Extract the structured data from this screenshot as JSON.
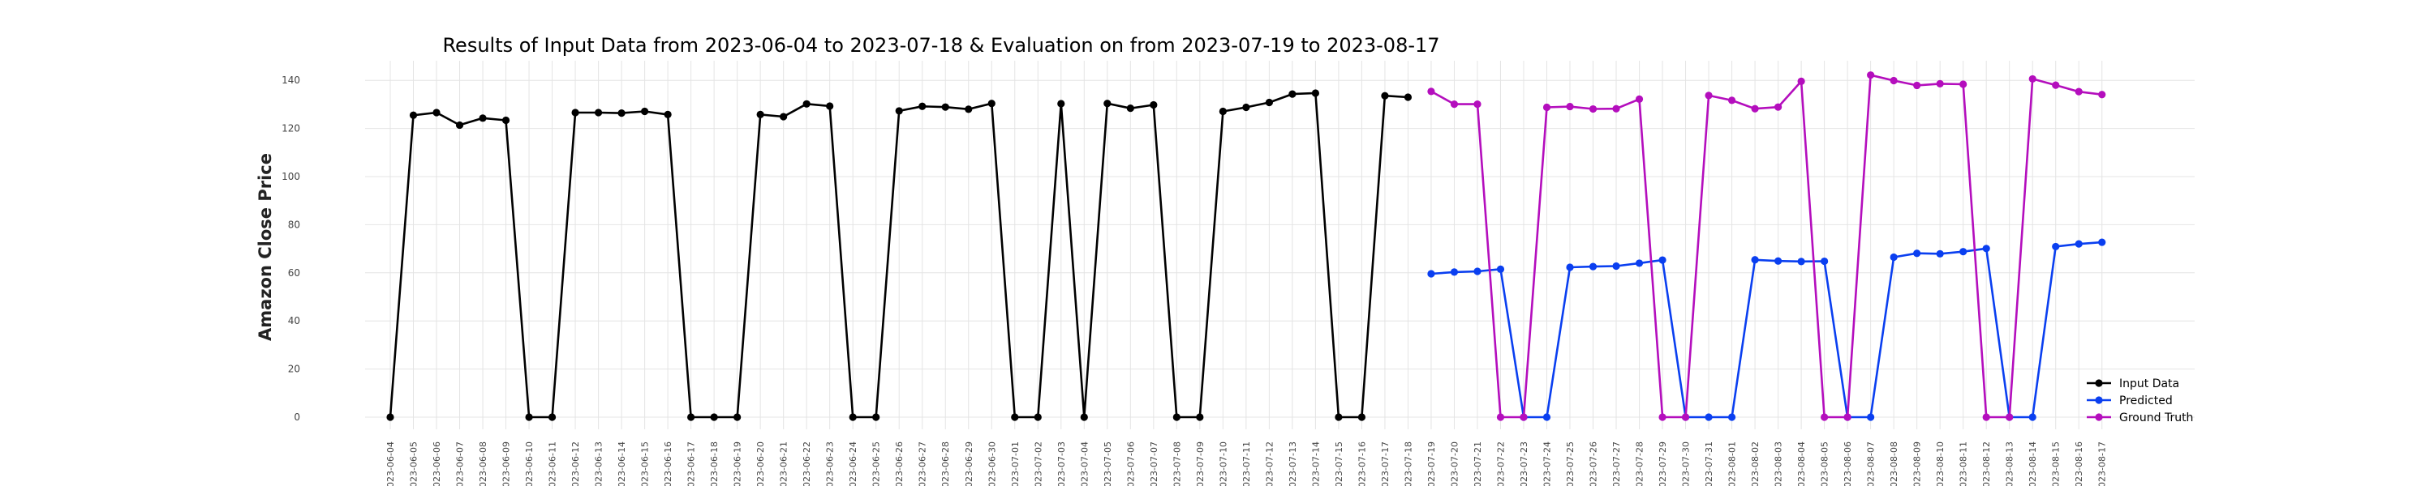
{
  "chart_data": {
    "type": "line",
    "title": "Results of Input Data from 2023-06-04 to 2023-07-18 & Evaluation on from 2023-07-19 to 2023-08-17",
    "xlabel": "",
    "ylabel": "Amazon Close Price",
    "ylim": [
      -5,
      150
    ],
    "yticks": [
      0,
      20,
      40,
      60,
      80,
      100,
      120,
      140
    ],
    "grid": true,
    "legend_position": "bottom-right",
    "categories": [
      "2023-06-04",
      "2023-06-05",
      "2023-06-06",
      "2023-06-07",
      "2023-06-08",
      "2023-06-09",
      "2023-06-10",
      "2023-06-11",
      "2023-06-12",
      "2023-06-13",
      "2023-06-14",
      "2023-06-15",
      "2023-06-16",
      "2023-06-17",
      "2023-06-18",
      "2023-06-19",
      "2023-06-20",
      "2023-06-21",
      "2023-06-22",
      "2023-06-23",
      "2023-06-24",
      "2023-06-25",
      "2023-06-26",
      "2023-06-27",
      "2023-06-28",
      "2023-06-29",
      "2023-06-30",
      "2023-07-01",
      "2023-07-02",
      "2023-07-03",
      "2023-07-04",
      "2023-07-05",
      "2023-07-06",
      "2023-07-07",
      "2023-07-08",
      "2023-07-09",
      "2023-07-10",
      "2023-07-11",
      "2023-07-12",
      "2023-07-13",
      "2023-07-14",
      "2023-07-15",
      "2023-07-16",
      "2023-07-17",
      "2023-07-18",
      "2023-07-19",
      "2023-07-20",
      "2023-07-21",
      "2023-07-22",
      "2023-07-23",
      "2023-07-24",
      "2023-07-25",
      "2023-07-26",
      "2023-07-27",
      "2023-07-28",
      "2023-07-29",
      "2023-07-30",
      "2023-07-31",
      "2023-08-01",
      "2023-08-02",
      "2023-08-03",
      "2023-08-04",
      "2023-08-05",
      "2023-08-06",
      "2023-08-07",
      "2023-08-08",
      "2023-08-09",
      "2023-08-10",
      "2023-08-11",
      "2023-08-12",
      "2023-08-13",
      "2023-08-14",
      "2023-08-15",
      "2023-08-16",
      "2023-08-17"
    ],
    "tick_labels": [
      "2023-06-04",
      "2023-06-05",
      "2023-06-06",
      "2023-06-07",
      "2023-06-08",
      "2023-06-09",
      "2023-06-10",
      "2023-06-11",
      "2023-06-12",
      "2023-06-13",
      "2023-06-14",
      "2023-06-15",
      "2023-06-16",
      "2023-06-17",
      "2023-06-18",
      "2023-06-19",
      "2023-06-20",
      "2023-06-21",
      "2023-06-22",
      "2023-06-23",
      "2023-06-24",
      "2023-06-25",
      "2023-06-26",
      "2023-06-27",
      "2023-06-28",
      "2023-06-29",
      "2023-06-30",
      "2023-07-01",
      "2023-07-02",
      "2023-07-03",
      "2023-07-04",
      "2023-07-05",
      "2023-07-06",
      "2023-07-07",
      "2023-07-08",
      "2023-07-09",
      "2023-07-10",
      "2023-07-11",
      "2023-07-12",
      "2023-07-13",
      "2023-07-14",
      "2023-07-15",
      "2023-07-16",
      "2023-07-17",
      "2023-07-18",
      "2023-07-19",
      "2023-07-20",
      "2023-07-21",
      "2023-07-22",
      "2023-07-23",
      "2023-07-24",
      "2023-07-25",
      "2023-07-26",
      "2023-07-27",
      "2023-07-28",
      "2023-07-29",
      "2023-07-30",
      "2023-07-31",
      "2023-08-01",
      "2023-08-02",
      "2023-08-03",
      "2023-08-04",
      "2023-08-05",
      "2023-08-06",
      "2023-08-07",
      "2023-08-08",
      "2023-08-09",
      "2023-08-10",
      "2023-08-11",
      "2023-08-12",
      "2023-08-13",
      "2023-08-14",
      "2023-08-15",
      "2023-08-16",
      "2023-08-17"
    ],
    "series": [
      {
        "name": "Input Data",
        "color": "#000000",
        "x": [
          "2023-06-04",
          "2023-06-05",
          "2023-06-06",
          "2023-06-07",
          "2023-06-08",
          "2023-06-09",
          "2023-06-10",
          "2023-06-11",
          "2023-06-12",
          "2023-06-13",
          "2023-06-14",
          "2023-06-15",
          "2023-06-16",
          "2023-06-17",
          "2023-06-18",
          "2023-06-19",
          "2023-06-20",
          "2023-06-21",
          "2023-06-22",
          "2023-06-23",
          "2023-06-24",
          "2023-06-25",
          "2023-06-26",
          "2023-06-27",
          "2023-06-28",
          "2023-06-29",
          "2023-06-30",
          "2023-07-01",
          "2023-07-02",
          "2023-07-03",
          "2023-07-04",
          "2023-07-05",
          "2023-07-06",
          "2023-07-07",
          "2023-07-08",
          "2023-07-09",
          "2023-07-10",
          "2023-07-11",
          "2023-07-12",
          "2023-07-13",
          "2023-07-14",
          "2023-07-15",
          "2023-07-16",
          "2023-07-17",
          "2023-07-18"
        ],
        "values": [
          0,
          125.5,
          126.6,
          121.4,
          124.3,
          123.4,
          0,
          0,
          126.6,
          126.6,
          126.4,
          127.1,
          125.8,
          0,
          0,
          0,
          125.8,
          124.9,
          130.2,
          129.3,
          0,
          0,
          127.3,
          129.2,
          128.9,
          128.0,
          130.4,
          0,
          0,
          130.3,
          0,
          130.4,
          128.4,
          129.8,
          0,
          0,
          127.1,
          128.8,
          130.8,
          134.3,
          134.7,
          0,
          0,
          133.6,
          133.0
        ]
      },
      {
        "name": "Predicted",
        "color": "#0a3ff0",
        "x": [
          "2023-07-19",
          "2023-07-20",
          "2023-07-21",
          "2023-07-22",
          "2023-07-23",
          "2023-07-24",
          "2023-07-25",
          "2023-07-26",
          "2023-07-27",
          "2023-07-28",
          "2023-07-29",
          "2023-07-30",
          "2023-07-31",
          "2023-08-01",
          "2023-08-02",
          "2023-08-03",
          "2023-08-04",
          "2023-08-05",
          "2023-08-06",
          "2023-08-07",
          "2023-08-08",
          "2023-08-09",
          "2023-08-10",
          "2023-08-11",
          "2023-08-12",
          "2023-08-13",
          "2023-08-14",
          "2023-08-15",
          "2023-08-16",
          "2023-08-17"
        ],
        "values": [
          59.6,
          60.3,
          60.6,
          61.5,
          0,
          0,
          62.3,
          62.6,
          62.8,
          64.0,
          65.3,
          0,
          0,
          0,
          65.4,
          64.9,
          64.7,
          64.8,
          0,
          0,
          66.5,
          68.1,
          67.9,
          68.8,
          70.1,
          0,
          0,
          70.9,
          72.0,
          72.7
        ]
      },
      {
        "name": "Ground Truth",
        "color": "#b40ebd",
        "x": [
          "2023-07-19",
          "2023-07-20",
          "2023-07-21",
          "2023-07-22",
          "2023-07-23",
          "2023-07-24",
          "2023-07-25",
          "2023-07-26",
          "2023-07-27",
          "2023-07-28",
          "2023-07-29",
          "2023-07-30",
          "2023-07-31",
          "2023-08-01",
          "2023-08-02",
          "2023-08-03",
          "2023-08-04",
          "2023-08-05",
          "2023-08-06",
          "2023-08-07",
          "2023-08-08",
          "2023-08-09",
          "2023-08-10",
          "2023-08-11",
          "2023-08-12",
          "2023-08-13",
          "2023-08-14",
          "2023-08-15",
          "2023-08-16",
          "2023-08-17"
        ],
        "values": [
          135.4,
          130.1,
          130.1,
          0,
          0,
          128.8,
          129.1,
          128.1,
          128.2,
          132.2,
          0,
          0,
          133.7,
          131.7,
          128.2,
          128.9,
          139.6,
          0,
          0,
          142.2,
          139.9,
          137.9,
          138.6,
          138.4,
          0,
          0,
          140.6,
          138.0,
          135.3,
          134.1
        ]
      }
    ]
  }
}
